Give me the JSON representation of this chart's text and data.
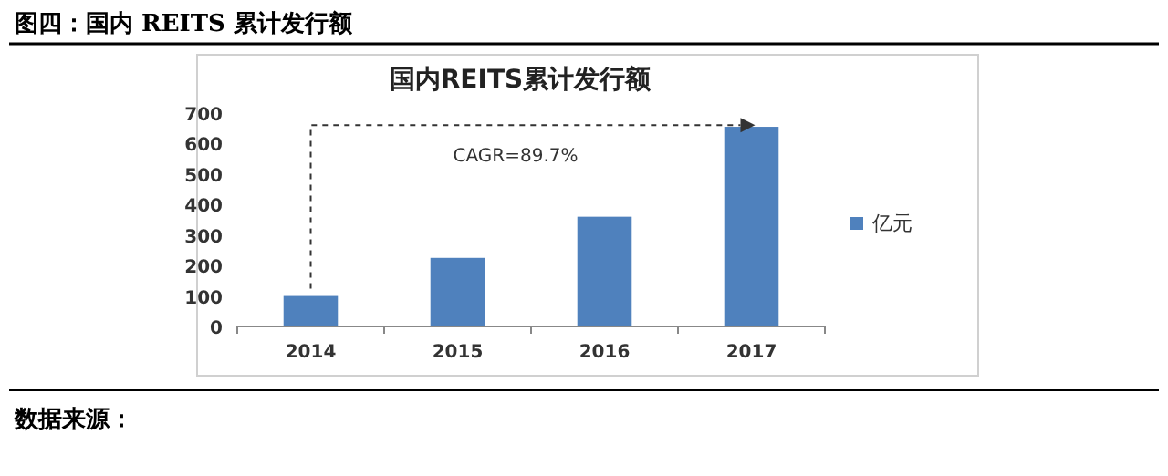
{
  "chart_data": {
    "type": "bar",
    "title": "国内REITS累计发行额",
    "categories": [
      "2014",
      "2015",
      "2016",
      "2017"
    ],
    "series": [
      {
        "name": "亿元",
        "color": "#4f81bd",
        "values": [
          100,
          225,
          360,
          655
        ]
      }
    ],
    "ylim": [
      0,
      700
    ],
    "yticks": [
      0,
      100,
      200,
      300,
      400,
      500,
      600,
      700
    ],
    "legend": "right",
    "grid": false,
    "annotations": [
      "图四：国内 REITS 累计发行额",
      "CAGR=89.7%",
      "数据来源："
    ]
  }
}
